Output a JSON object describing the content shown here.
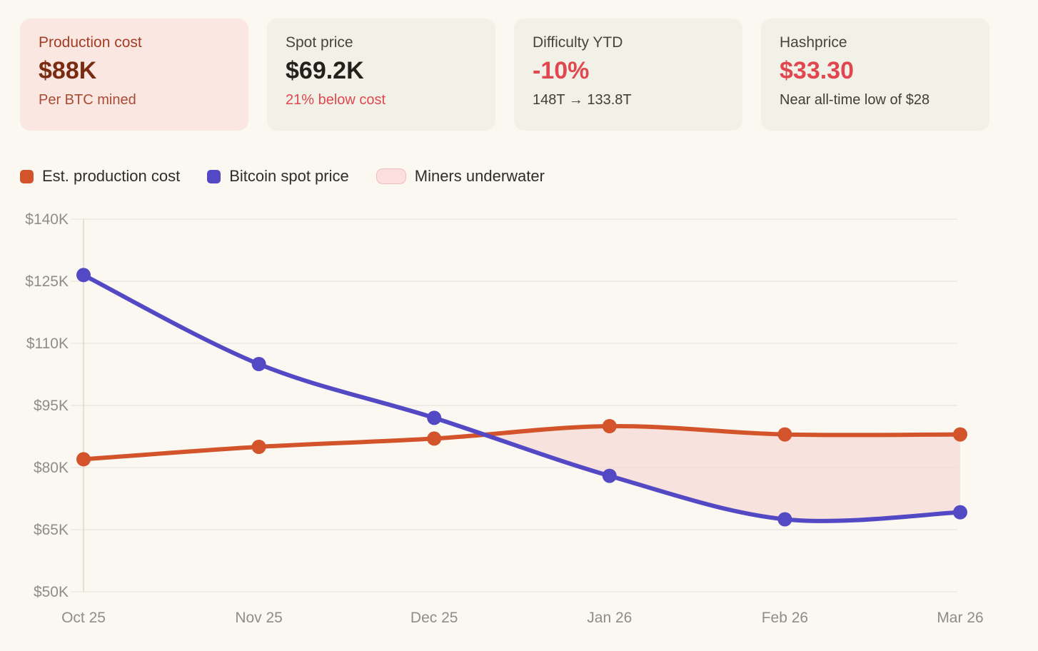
{
  "cards": [
    {
      "title": "Production cost",
      "value": "$88K",
      "subtitle": "Per BTC mined"
    },
    {
      "title": "Spot price",
      "value": "$69.2K",
      "subtitle": "21% below cost"
    },
    {
      "title": "Difficulty YTD",
      "value": "-10%",
      "subtitle": "148T → 133.8T"
    },
    {
      "title": "Hashprice",
      "value": "$33.30",
      "subtitle": "Near all-time low of $28"
    }
  ],
  "legend": [
    {
      "label": "Est. production cost"
    },
    {
      "label": "Bitcoin spot price"
    },
    {
      "label": "Miners underwater"
    }
  ],
  "colors": {
    "page_bg": "#faf8f1",
    "card_bg": "#f2f1e8",
    "card_pink_bg": "#fae7e2",
    "accent_red": "#e0474f",
    "production_cost_orange": "#d3532b",
    "spot_price_blue": "#5449c5",
    "underwater": "#f8dcd8",
    "underwater_swatch": "#fbdede",
    "underwater_border": "#f2bdbd",
    "grid": "#e9e7df",
    "axis": "#dbd8cf",
    "tick_text": "#8e8d87"
  },
  "chart_data": {
    "type": "line",
    "x": [
      "Oct 25",
      "Nov 25",
      "Dec 25",
      "Jan 26",
      "Feb 26",
      "Mar 26"
    ],
    "series": [
      {
        "name": "Est. production cost",
        "color": "#d3532b",
        "values": [
          82,
          85,
          87,
          90,
          88,
          88
        ]
      },
      {
        "name": "Bitcoin spot price",
        "color": "#5449c5",
        "values": [
          126.5,
          105,
          92,
          78,
          67.5,
          69.2
        ]
      }
    ],
    "underwater_region": "area between curves where spot price is below production cost (Dec 25 crossing to Mar 26)",
    "y_ticks": [
      140,
      125,
      110,
      95,
      80,
      65,
      50
    ],
    "y_tick_labels": [
      "$140K",
      "$125K",
      "$110K",
      "$95K",
      "$80K",
      "$65K",
      "$50K"
    ],
    "ylim": [
      50,
      140
    ],
    "unit": "USD thousands per BTC",
    "grid": true,
    "legend_position": "top"
  }
}
